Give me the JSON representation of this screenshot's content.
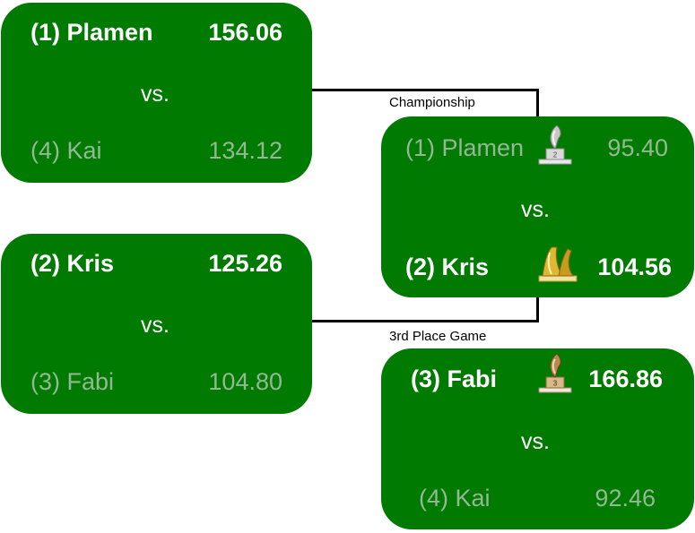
{
  "semifinal1": {
    "team1": {
      "name": "(1) Plamen",
      "score": "156.06",
      "winner": true
    },
    "vs": "vs.",
    "team2": {
      "name": "(4) Kai",
      "score": "134.12",
      "winner": false
    }
  },
  "semifinal2": {
    "team1": {
      "name": "(2) Kris",
      "score": "125.26",
      "winner": true
    },
    "vs": "vs.",
    "team2": {
      "name": "(3) Fabi",
      "score": "104.80",
      "winner": false
    }
  },
  "championship": {
    "label": "Championship",
    "team1": {
      "name": "(1) Plamen",
      "score": "95.40",
      "winner": false,
      "trophy": "silver-2nd-place-trophy-icon"
    },
    "vs": "vs.",
    "team2": {
      "name": "(2) Kris",
      "score": "104.56",
      "winner": true,
      "trophy": "gold-champion-trophy-icon"
    }
  },
  "third_place": {
    "label": "3rd Place Game",
    "team1": {
      "name": "(3) Fabi",
      "score": "166.86",
      "winner": true,
      "trophy": "bronze-3rd-place-trophy-icon"
    },
    "vs": "vs.",
    "team2": {
      "name": "(4) Kai",
      "score": "92.46",
      "winner": false
    }
  },
  "colors": {
    "box": "#007a00",
    "winner_text": "#ffffff",
    "loser_text": "#93b893",
    "connector": "#000000"
  }
}
